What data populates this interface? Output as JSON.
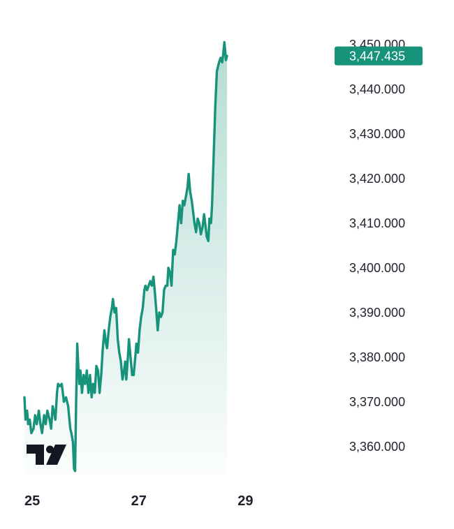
{
  "chart_data": {
    "type": "area",
    "x_unit": "day",
    "x_range": [
      25,
      30.7
    ],
    "ylim": [
      3353.7,
      3453.7
    ],
    "y_ticks": [
      3360,
      3370,
      3380,
      3390,
      3400,
      3410,
      3420,
      3430,
      3440,
      3450
    ],
    "y_tick_labels": [
      "3,360.000",
      "3,370.000",
      "3,380.000",
      "3,390.000",
      "3,400.000",
      "3,410.000",
      "3,420.000",
      "3,430.000",
      "3,440.000",
      "3,450.000"
    ],
    "x_ticks": [
      25,
      27,
      29
    ],
    "x_tick_labels": [
      "25",
      "27",
      "29"
    ],
    "last_value": 3447.435,
    "last_value_label": "3,447.435",
    "line_color": "#16937a",
    "fill_color": "#16937a",
    "grid": false,
    "logo": "tradingview-logo",
    "series": [
      {
        "points": [
          [
            25.0,
            3371.0
          ],
          [
            25.02,
            3366.0
          ],
          [
            25.05,
            3368.0
          ],
          [
            25.07,
            3365.0
          ],
          [
            25.1,
            3366.0
          ],
          [
            25.13,
            3363.0
          ],
          [
            25.17,
            3364.0
          ],
          [
            25.2,
            3367.0
          ],
          [
            25.23,
            3365.0
          ],
          [
            25.27,
            3368.0
          ],
          [
            25.3,
            3365.0
          ],
          [
            25.33,
            3363.0
          ],
          [
            25.37,
            3367.0
          ],
          [
            25.4,
            3365.0
          ],
          [
            25.43,
            3368.0
          ],
          [
            25.47,
            3366.0
          ],
          [
            25.5,
            3364.0
          ],
          [
            25.53,
            3369.0
          ],
          [
            25.55,
            3368.0
          ],
          [
            25.58,
            3366.0
          ],
          [
            25.61,
            3372.0
          ],
          [
            25.63,
            3374.0
          ],
          [
            25.67,
            3373.5
          ],
          [
            25.7,
            3374.0
          ],
          [
            25.74,
            3370.0
          ],
          [
            25.78,
            3371.0
          ],
          [
            25.82,
            3369.0
          ],
          [
            25.86,
            3364.0
          ],
          [
            25.88,
            3363.0
          ],
          [
            25.91,
            3361.0
          ],
          [
            25.93,
            3355.0
          ],
          [
            25.95,
            3354.5
          ],
          [
            25.97,
            3370.0
          ],
          [
            25.99,
            3383.0
          ],
          [
            26.01,
            3378.0
          ],
          [
            26.03,
            3374.0
          ],
          [
            26.05,
            3377.0
          ],
          [
            26.08,
            3372.0
          ],
          [
            26.11,
            3376.0
          ],
          [
            26.14,
            3374.0
          ],
          [
            26.17,
            3377.0
          ],
          [
            26.2,
            3372.0
          ],
          [
            26.23,
            3376.0
          ],
          [
            26.26,
            3371.0
          ],
          [
            26.29,
            3374.0
          ],
          [
            26.32,
            3372.0
          ],
          [
            26.35,
            3378.0
          ],
          [
            26.38,
            3377.0
          ],
          [
            26.41,
            3372.0
          ],
          [
            26.44,
            3376.0
          ],
          [
            26.47,
            3382.0
          ],
          [
            26.5,
            3386.0
          ],
          [
            26.53,
            3383.0
          ],
          [
            26.55,
            3382.0
          ],
          [
            26.58,
            3386.0
          ],
          [
            26.61,
            3389.0
          ],
          [
            26.64,
            3391.0
          ],
          [
            26.66,
            3393.0
          ],
          [
            26.69,
            3390.0
          ],
          [
            26.72,
            3391.0
          ],
          [
            26.75,
            3384.0
          ],
          [
            26.78,
            3381.0
          ],
          [
            26.81,
            3379.0
          ],
          [
            26.84,
            3375.0
          ],
          [
            26.87,
            3377.0
          ],
          [
            26.89,
            3379.0
          ],
          [
            26.91,
            3375.0
          ],
          [
            26.94,
            3380.0
          ],
          [
            26.96,
            3384.0
          ],
          [
            26.99,
            3380.0
          ],
          [
            27.02,
            3376.0
          ],
          [
            27.05,
            3376.0
          ],
          [
            27.08,
            3380.0
          ],
          [
            27.1,
            3383.0
          ],
          [
            27.13,
            3381.0
          ],
          [
            27.16,
            3386.0
          ],
          [
            27.19,
            3389.0
          ],
          [
            27.22,
            3391.0
          ],
          [
            27.25,
            3395.0
          ],
          [
            27.27,
            3396.0
          ],
          [
            27.3,
            3395.0
          ],
          [
            27.33,
            3396.0
          ],
          [
            27.36,
            3397.0
          ],
          [
            27.39,
            3396.0
          ],
          [
            27.42,
            3398.0
          ],
          [
            27.45,
            3394.0
          ],
          [
            27.47,
            3391.0
          ],
          [
            27.5,
            3386.0
          ],
          [
            27.53,
            3390.0
          ],
          [
            27.56,
            3389.0
          ],
          [
            27.59,
            3390.0
          ],
          [
            27.62,
            3395.0
          ],
          [
            27.65,
            3396.0
          ],
          [
            27.68,
            3396.0
          ],
          [
            27.7,
            3400.0
          ],
          [
            27.73,
            3399.0
          ],
          [
            27.76,
            3396.0
          ],
          [
            27.79,
            3404.0
          ],
          [
            27.82,
            3403.0
          ],
          [
            27.85,
            3406.0
          ],
          [
            27.88,
            3410.0
          ],
          [
            27.91,
            3414.0
          ],
          [
            27.94,
            3410.0
          ],
          [
            27.97,
            3415.0
          ],
          [
            28.0,
            3414.0
          ],
          [
            28.03,
            3416.0
          ],
          [
            28.06,
            3418.0
          ],
          [
            28.08,
            3421.0
          ],
          [
            28.11,
            3417.0
          ],
          [
            28.14,
            3415.0
          ],
          [
            28.17,
            3412.0
          ],
          [
            28.19,
            3410.0
          ],
          [
            28.22,
            3408.0
          ],
          [
            28.25,
            3411.0
          ],
          [
            28.28,
            3410.0
          ],
          [
            28.31,
            3407.5
          ],
          [
            28.34,
            3409.0
          ],
          [
            28.37,
            3412.0
          ],
          [
            28.4,
            3409.0
          ],
          [
            28.42,
            3407.0
          ],
          [
            28.45,
            3406.0
          ],
          [
            28.47,
            3411.0
          ],
          [
            28.5,
            3410.0
          ],
          [
            28.52,
            3414.0
          ],
          [
            28.55,
            3425.0
          ],
          [
            28.58,
            3436.0
          ],
          [
            28.61,
            3444.0
          ],
          [
            28.65,
            3446.0
          ],
          [
            28.68,
            3447.0
          ],
          [
            28.71,
            3446.0
          ],
          [
            28.73,
            3448.0
          ],
          [
            28.75,
            3450.5
          ],
          [
            28.77,
            3448.0
          ],
          [
            28.78,
            3446.5
          ],
          [
            28.8,
            3447.435
          ]
        ]
      }
    ]
  }
}
